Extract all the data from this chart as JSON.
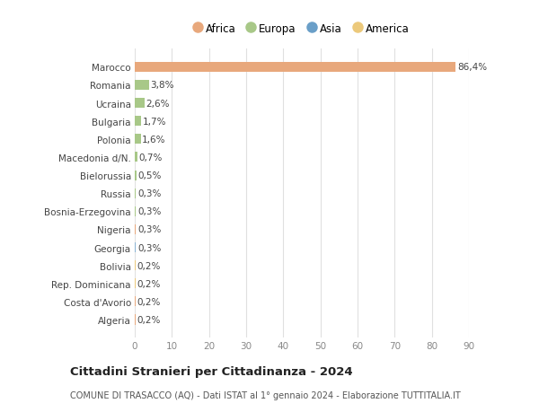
{
  "categories": [
    "Algeria",
    "Costa d'Avorio",
    "Rep. Dominicana",
    "Bolivia",
    "Georgia",
    "Nigeria",
    "Bosnia-Erzegovina",
    "Russia",
    "Bielorussia",
    "Macedonia d/N.",
    "Polonia",
    "Bulgaria",
    "Ucraina",
    "Romania",
    "Marocco"
  ],
  "values": [
    0.2,
    0.2,
    0.2,
    0.2,
    0.3,
    0.3,
    0.3,
    0.3,
    0.5,
    0.7,
    1.6,
    1.7,
    2.6,
    3.8,
    86.4
  ],
  "labels": [
    "0,2%",
    "0,2%",
    "0,2%",
    "0,2%",
    "0,3%",
    "0,3%",
    "0,3%",
    "0,3%",
    "0,5%",
    "0,7%",
    "1,6%",
    "1,7%",
    "2,6%",
    "3,8%",
    "86,4%"
  ],
  "colors": [
    "#e8a87c",
    "#e8a87c",
    "#ecc97b",
    "#ecc97b",
    "#8ab4d4",
    "#e8a87c",
    "#a8c888",
    "#a8c888",
    "#a8c888",
    "#a8c888",
    "#a8c888",
    "#a8c888",
    "#a8c888",
    "#a8c888",
    "#e8a87c"
  ],
  "legend": [
    {
      "label": "Africa",
      "color": "#e8a87c"
    },
    {
      "label": "Europa",
      "color": "#a8c888"
    },
    {
      "label": "Asia",
      "color": "#6a9fc8"
    },
    {
      "label": "America",
      "color": "#ecc97b"
    }
  ],
  "title": "Cittadini Stranieri per Cittadinanza - 2024",
  "subtitle": "COMUNE DI TRASACCO (AQ) - Dati ISTAT al 1° gennaio 2024 - Elaborazione TUTTITALIA.IT",
  "xlim": [
    0,
    90
  ],
  "xticks": [
    0,
    10,
    20,
    30,
    40,
    50,
    60,
    70,
    80,
    90
  ],
  "background_color": "#ffffff",
  "grid_color": "#e0e0e0"
}
